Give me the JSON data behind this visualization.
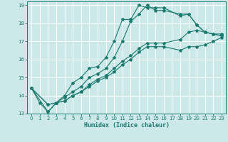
{
  "xlabel": "Humidex (Indice chaleur)",
  "ylabel": "",
  "bg_color": "#cce8e8",
  "line_color": "#1a7a6e",
  "grid_color": "#ffffff",
  "xlim": [
    -0.5,
    23.5
  ],
  "ylim": [
    13,
    19.2
  ],
  "xticks": [
    0,
    1,
    2,
    3,
    4,
    5,
    6,
    7,
    8,
    9,
    10,
    11,
    12,
    13,
    14,
    15,
    16,
    17,
    18,
    19,
    20,
    21,
    22,
    23
  ],
  "yticks": [
    13,
    14,
    15,
    16,
    17,
    18,
    19
  ],
  "line1_x": [
    0,
    1,
    2,
    3,
    4,
    5,
    6,
    7,
    8,
    9,
    10,
    11,
    12,
    13,
    14,
    15,
    16,
    18,
    19,
    20,
    21,
    22,
    23
  ],
  "line1_y": [
    14.4,
    13.6,
    13.1,
    13.6,
    14.0,
    14.7,
    15.0,
    15.5,
    15.6,
    16.1,
    17.0,
    18.2,
    18.2,
    19.0,
    18.85,
    18.85,
    18.85,
    18.4,
    18.5,
    17.9,
    17.5,
    17.4,
    17.4
  ],
  "line2_x": [
    0,
    2,
    3,
    4,
    5,
    6,
    7,
    8,
    9,
    10,
    11,
    12,
    13,
    14,
    15,
    16,
    18,
    19,
    20,
    21,
    22,
    23
  ],
  "line2_y": [
    14.4,
    13.1,
    13.6,
    13.9,
    14.2,
    14.5,
    15.0,
    15.2,
    15.5,
    16.1,
    17.0,
    18.1,
    18.5,
    19.0,
    18.7,
    18.7,
    18.5,
    18.5,
    17.9,
    17.5,
    17.4,
    17.3
  ],
  "line3_x": [
    0,
    2,
    3,
    4,
    5,
    6,
    7,
    8,
    9,
    10,
    11,
    12,
    13,
    14,
    15,
    16,
    18,
    19,
    20,
    21,
    22,
    23
  ],
  "line3_y": [
    14.4,
    13.5,
    13.6,
    13.7,
    14.0,
    14.2,
    14.6,
    14.9,
    15.1,
    15.5,
    15.9,
    16.2,
    16.6,
    16.9,
    16.9,
    16.9,
    17.1,
    17.5,
    17.6,
    17.5,
    17.4,
    17.3
  ],
  "line4_x": [
    0,
    2,
    3,
    4,
    5,
    6,
    7,
    8,
    9,
    10,
    11,
    12,
    13,
    14,
    15,
    16,
    18,
    19,
    20,
    21,
    22,
    23
  ],
  "line4_y": [
    14.4,
    13.5,
    13.6,
    13.7,
    14.0,
    14.2,
    14.5,
    14.8,
    15.0,
    15.3,
    15.7,
    16.0,
    16.4,
    16.7,
    16.7,
    16.7,
    16.5,
    16.7,
    16.7,
    16.8,
    17.0,
    17.2
  ]
}
